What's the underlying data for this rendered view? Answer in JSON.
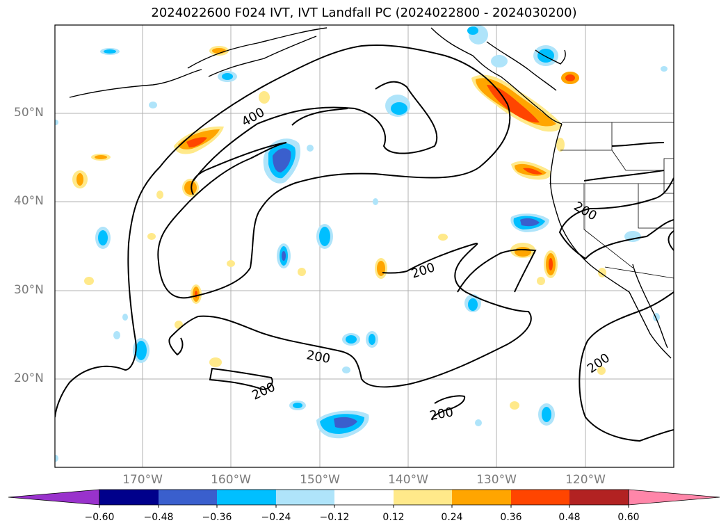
{
  "title": "2024022600 F024 IVT, IVT Landfall PC (2024022800 - 2024030200)",
  "map": {
    "lat_labels": [
      "50°N",
      "40°N",
      "30°N",
      "20°N"
    ],
    "lon_labels": [
      "170°W",
      "160°W",
      "150°W",
      "140°W",
      "130°W",
      "120°W"
    ],
    "contour_labels": [
      "400",
      "200",
      "200",
      "200",
      "200",
      "200",
      "200"
    ],
    "contour_level_ivt": [
      200,
      400
    ]
  },
  "colorbar": {
    "tick_labels": [
      "−0.60",
      "−0.48",
      "−0.36",
      "−0.24",
      "−0.12",
      "0.12",
      "0.24",
      "0.36",
      "0.48",
      "0.60"
    ],
    "colors": [
      "#9932cc",
      "#00008b",
      "#3a5fcd",
      "#00bfff",
      "#afe4fa",
      "#ffffff",
      "#ffe98a",
      "#ffa500",
      "#ff4500",
      "#b22222",
      "#ff86a9"
    ]
  }
}
